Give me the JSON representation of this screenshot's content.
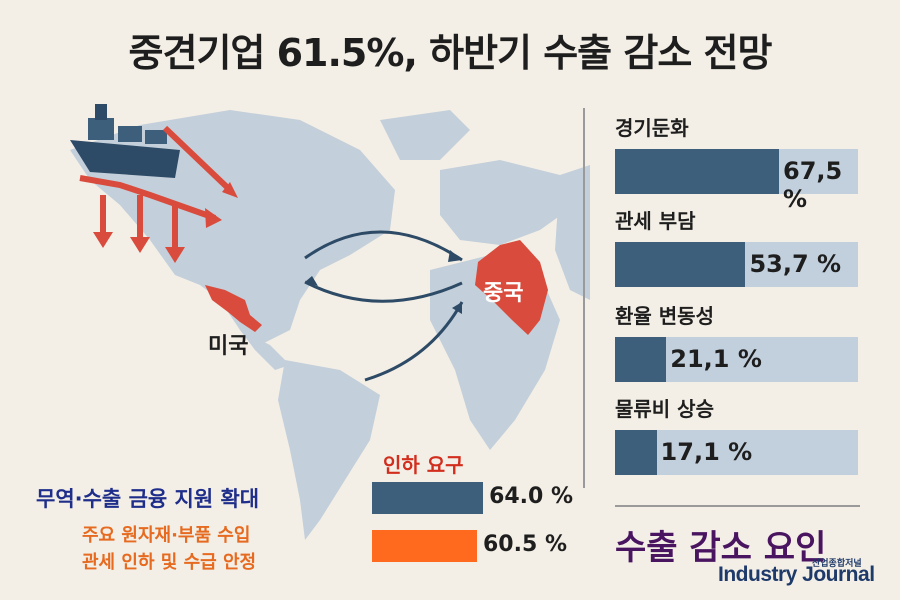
{
  "title": "중견기업 61.5%, 하반기 수출 감소 전망",
  "map": {
    "usa_label": "미국",
    "china_label": "중국"
  },
  "chart_data": [
    {
      "type": "bar",
      "orientation": "horizontal",
      "title": "수출 감소 요인",
      "categories": [
        "경기둔화",
        "관세 부담",
        "환율 변동성",
        "물류비 상승"
      ],
      "values": [
        67.5,
        53.7,
        21.1,
        17.1
      ],
      "value_labels": [
        "67,5 %",
        "53,7 %",
        "21,1 %",
        "17,1 %"
      ],
      "xlim": [
        0,
        100
      ]
    },
    {
      "type": "bar",
      "orientation": "horizontal",
      "title": "인하 요구",
      "categories": [
        "무역·수출 금융 지원 확대",
        "주요 원자재·부품 수입 관세 인하 및 수급 안정"
      ],
      "values": [
        64.0,
        60.5
      ],
      "value_labels": [
        "64.0 %",
        "60.5 %"
      ],
      "colors": [
        "#3d5f7c",
        "#ff6a1f"
      ]
    }
  ],
  "support": {
    "finance": "무역·수출 금융 지원 확대",
    "tariff_line1": "주요 원자재·부품 수입",
    "tariff_line2": "관세 인하 및 수급 안정"
  },
  "logo": {
    "small": "산업종합저널",
    "main": "Industry Journal"
  },
  "colors": {
    "bar": "#3d5f7c",
    "track": "#c2d0dd",
    "accent": "#ff6a1f",
    "red": "#d94b3c"
  }
}
